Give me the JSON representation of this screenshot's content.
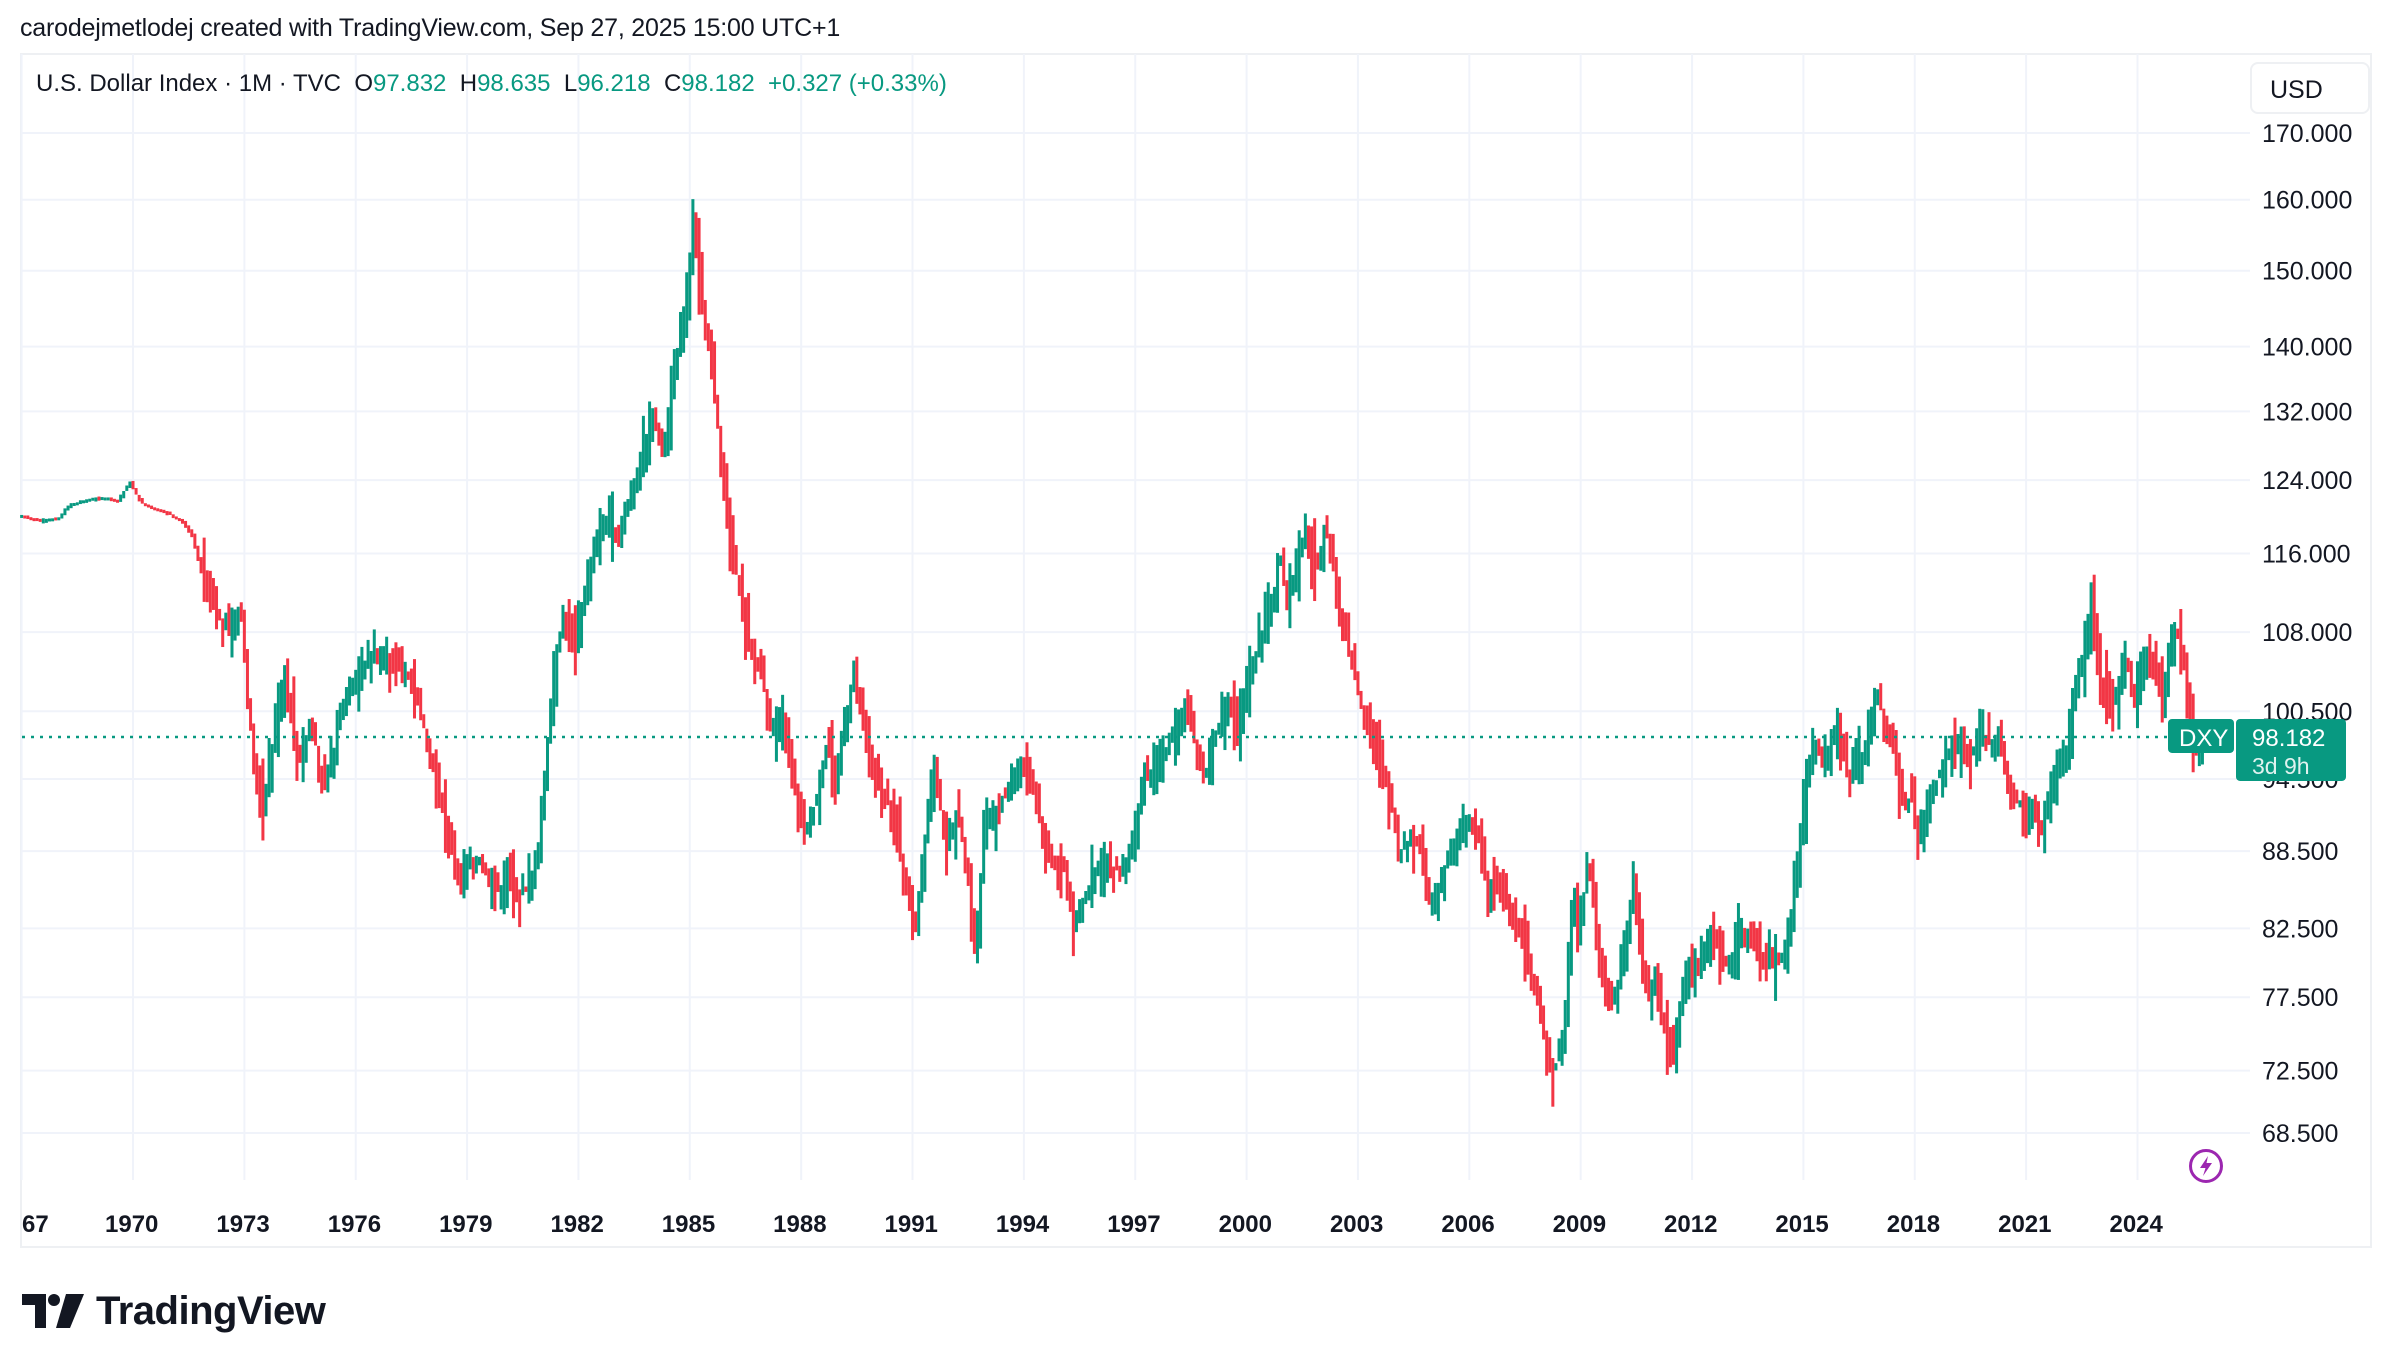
{
  "caption": "carodejmetlodej created with TradingView.com, Sep 27, 2025 15:00 UTC+1",
  "legend": {
    "title": "U.S. Dollar Index · 1M · TVC",
    "open_key": "O",
    "open": "97.832",
    "high_key": "H",
    "high": "98.635",
    "low_key": "L",
    "low": "96.218",
    "close_key": "C",
    "close": "98.182",
    "change": "+0.327 (+0.33%)"
  },
  "currency_button": "USD",
  "last_price": {
    "symbol": "DXY",
    "price": "98.182",
    "countdown": "3d 9h"
  },
  "brand": "TradingView",
  "icons": {
    "logo": "tradingview-logo-icon",
    "lightning": "lightning-icon"
  },
  "colors": {
    "up": "#089981",
    "down": "#f23645",
    "grid": "#f0f3fa",
    "accent_purple": "#9c27b0"
  },
  "chart_data": {
    "type": "bar",
    "style": "ohlc-candles",
    "interval": "1M",
    "scale": "log",
    "title": "U.S. Dollar Index · 1M · TVC",
    "xlabel": "",
    "ylabel": "USD",
    "ylim": [
      64,
      176
    ],
    "xlim": [
      1967.0,
      2027.3
    ],
    "y_ticks": [
      "170.000",
      "160.000",
      "150.000",
      "140.000",
      "132.000",
      "124.000",
      "116.000",
      "108.000",
      "100.500",
      "94.500",
      "88.500",
      "82.500",
      "77.500",
      "72.500",
      "68.500"
    ],
    "x_ticks": [
      "67",
      "1970",
      "1973",
      "1976",
      "1979",
      "1982",
      "1985",
      "1988",
      "1991",
      "1994",
      "1997",
      "2000",
      "2003",
      "2006",
      "2009",
      "2012",
      "2015",
      "2018",
      "2021",
      "2024"
    ],
    "last_value": 98.182,
    "grid": true,
    "key_points_note": "approximate monthly closes, [year_fraction, value]",
    "closes": [
      [
        1967.0,
        120.0
      ],
      [
        1967.5,
        119.5
      ],
      [
        1968.0,
        119.8
      ],
      [
        1968.3,
        121.3
      ],
      [
        1968.8,
        121.8
      ],
      [
        1969.3,
        122.0
      ],
      [
        1969.6,
        121.7
      ],
      [
        1969.9,
        123.8
      ],
      [
        1970.2,
        121.5
      ],
      [
        1970.6,
        120.8
      ],
      [
        1971.0,
        120.2
      ],
      [
        1971.3,
        119.5
      ],
      [
        1971.6,
        117.8
      ],
      [
        1971.9,
        113.0
      ],
      [
        1972.2,
        110.0
      ],
      [
        1972.6,
        108.5
      ],
      [
        1972.9,
        110.5
      ],
      [
        1973.1,
        101.0
      ],
      [
        1973.3,
        95.0
      ],
      [
        1973.5,
        92.0
      ],
      [
        1973.7,
        96.0
      ],
      [
        1973.9,
        101.0
      ],
      [
        1974.1,
        104.0
      ],
      [
        1974.3,
        99.0
      ],
      [
        1974.5,
        96.0
      ],
      [
        1974.8,
        100.0
      ],
      [
        1975.1,
        93.5
      ],
      [
        1975.3,
        95.0
      ],
      [
        1975.6,
        100.5
      ],
      [
        1975.9,
        103.0
      ],
      [
        1976.2,
        104.5
      ],
      [
        1976.5,
        106.0
      ],
      [
        1976.8,
        105.5
      ],
      [
        1977.2,
        104.5
      ],
      [
        1977.5,
        103.0
      ],
      [
        1977.8,
        100.0
      ],
      [
        1978.0,
        96.0
      ],
      [
        1978.2,
        94.0
      ],
      [
        1978.5,
        90.0
      ],
      [
        1978.8,
        86.0
      ],
      [
        1979.0,
        87.0
      ],
      [
        1979.3,
        88.0
      ],
      [
        1979.6,
        86.0
      ],
      [
        1979.9,
        85.5
      ],
      [
        1980.2,
        86.5
      ],
      [
        1980.4,
        85.0
      ],
      [
        1980.6,
        85.5
      ],
      [
        1980.9,
        88.0
      ],
      [
        1981.1,
        95.0
      ],
      [
        1981.3,
        104.0
      ],
      [
        1981.6,
        110.0
      ],
      [
        1981.9,
        106.0
      ],
      [
        1982.2,
        113.0
      ],
      [
        1982.5,
        118.0
      ],
      [
        1982.8,
        120.0
      ],
      [
        1983.1,
        118.0
      ],
      [
        1983.4,
        122.0
      ],
      [
        1983.7,
        127.0
      ],
      [
        1984.0,
        131.0
      ],
      [
        1984.3,
        128.0
      ],
      [
        1984.6,
        138.0
      ],
      [
        1984.9,
        145.0
      ],
      [
        1985.1,
        158.0
      ],
      [
        1985.2,
        150.0
      ],
      [
        1985.4,
        143.0
      ],
      [
        1985.6,
        136.0
      ],
      [
        1985.8,
        128.0
      ],
      [
        1986.0,
        120.0
      ],
      [
        1986.3,
        113.0
      ],
      [
        1986.6,
        106.0
      ],
      [
        1986.9,
        105.0
      ],
      [
        1987.2,
        98.5
      ],
      [
        1987.5,
        100.0
      ],
      [
        1987.9,
        92.0
      ],
      [
        1988.1,
        90.0
      ],
      [
        1988.4,
        92.5
      ],
      [
        1988.7,
        98.0
      ],
      [
        1988.9,
        94.0
      ],
      [
        1989.2,
        100.0
      ],
      [
        1989.4,
        104.0
      ],
      [
        1989.7,
        99.0
      ],
      [
        1990.0,
        94.0
      ],
      [
        1990.3,
        93.0
      ],
      [
        1990.6,
        89.5
      ],
      [
        1990.9,
        84.0
      ],
      [
        1991.1,
        82.5
      ],
      [
        1991.4,
        92.0
      ],
      [
        1991.6,
        96.0
      ],
      [
        1991.9,
        88.0
      ],
      [
        1992.2,
        92.0
      ],
      [
        1992.5,
        86.0
      ],
      [
        1992.7,
        80.5
      ],
      [
        1992.9,
        90.0
      ],
      [
        1993.2,
        92.0
      ],
      [
        1993.5,
        93.0
      ],
      [
        1993.9,
        96.0
      ],
      [
        1994.2,
        94.0
      ],
      [
        1994.5,
        90.0
      ],
      [
        1994.8,
        87.5
      ],
      [
        1995.1,
        87.0
      ],
      [
        1995.3,
        83.0
      ],
      [
        1995.6,
        84.5
      ],
      [
        1995.9,
        86.5
      ],
      [
        1996.2,
        87.5
      ],
      [
        1996.6,
        87.0
      ],
      [
        1996.9,
        89.0
      ],
      [
        1997.2,
        94.5
      ],
      [
        1997.5,
        95.5
      ],
      [
        1997.8,
        97.0
      ],
      [
        1998.1,
        99.5
      ],
      [
        1998.4,
        100.5
      ],
      [
        1998.7,
        96.0
      ],
      [
        1998.9,
        95.0
      ],
      [
        1999.2,
        99.0
      ],
      [
        1999.5,
        101.5
      ],
      [
        1999.8,
        99.0
      ],
      [
        2000.1,
        104.0
      ],
      [
        2000.4,
        108.0
      ],
      [
        2000.7,
        111.0
      ],
      [
        2000.9,
        116.0
      ],
      [
        2001.1,
        110.5
      ],
      [
        2001.4,
        116.5
      ],
      [
        2001.6,
        118.0
      ],
      [
        2001.9,
        114.0
      ],
      [
        2002.1,
        119.5
      ],
      [
        2002.3,
        116.0
      ],
      [
        2002.5,
        109.0
      ],
      [
        2002.8,
        106.0
      ],
      [
        2003.0,
        102.0
      ],
      [
        2003.3,
        99.0
      ],
      [
        2003.6,
        96.0
      ],
      [
        2003.9,
        92.0
      ],
      [
        2004.1,
        88.0
      ],
      [
        2004.4,
        89.5
      ],
      [
        2004.7,
        88.5
      ],
      [
        2004.9,
        84.5
      ],
      [
        2005.2,
        86.0
      ],
      [
        2005.5,
        89.0
      ],
      [
        2005.9,
        91.0
      ],
      [
        2006.2,
        90.0
      ],
      [
        2006.5,
        85.5
      ],
      [
        2006.8,
        86.0
      ],
      [
        2007.1,
        84.0
      ],
      [
        2007.4,
        82.0
      ],
      [
        2007.7,
        79.0
      ],
      [
        2007.9,
        76.0
      ],
      [
        2008.2,
        72.5
      ],
      [
        2008.4,
        73.0
      ],
      [
        2008.6,
        77.0
      ],
      [
        2008.8,
        86.0
      ],
      [
        2008.95,
        82.0
      ],
      [
        2009.2,
        88.0
      ],
      [
        2009.5,
        80.0
      ],
      [
        2009.8,
        76.5
      ],
      [
        2009.95,
        78.0
      ],
      [
        2010.2,
        81.0
      ],
      [
        2010.4,
        86.0
      ],
      [
        2010.6,
        81.5
      ],
      [
        2010.8,
        77.0
      ],
      [
        2011.0,
        79.0
      ],
      [
        2011.3,
        74.5
      ],
      [
        2011.5,
        74.0
      ],
      [
        2011.7,
        77.0
      ],
      [
        2011.9,
        80.0
      ],
      [
        2012.2,
        79.5
      ],
      [
        2012.5,
        82.5
      ],
      [
        2012.8,
        80.0
      ],
      [
        2013.0,
        79.5
      ],
      [
        2013.3,
        82.5
      ],
      [
        2013.6,
        81.5
      ],
      [
        2013.9,
        80.5
      ],
      [
        2014.2,
        80.0
      ],
      [
        2014.5,
        80.5
      ],
      [
        2014.7,
        84.5
      ],
      [
        2014.9,
        89.0
      ],
      [
        2015.1,
        95.0
      ],
      [
        2015.3,
        97.0
      ],
      [
        2015.6,
        96.0
      ],
      [
        2015.9,
        99.0
      ],
      [
        2016.2,
        94.5
      ],
      [
        2016.5,
        96.0
      ],
      [
        2016.8,
        98.5
      ],
      [
        2016.95,
        102.5
      ],
      [
        2017.2,
        100.0
      ],
      [
        2017.5,
        95.5
      ],
      [
        2017.7,
        92.5
      ],
      [
        2017.9,
        93.0
      ],
      [
        2018.1,
        89.0
      ],
      [
        2018.3,
        91.5
      ],
      [
        2018.6,
        94.5
      ],
      [
        2018.9,
        96.5
      ],
      [
        2019.2,
        97.0
      ],
      [
        2019.5,
        96.5
      ],
      [
        2019.8,
        98.5
      ],
      [
        2020.1,
        97.5
      ],
      [
        2020.25,
        99.0
      ],
      [
        2020.4,
        96.0
      ],
      [
        2020.6,
        93.0
      ],
      [
        2020.9,
        92.0
      ],
      [
        2021.0,
        90.0
      ],
      [
        2021.2,
        92.5
      ],
      [
        2021.4,
        90.0
      ],
      [
        2021.6,
        92.5
      ],
      [
        2021.9,
        95.5
      ],
      [
        2022.1,
        97.0
      ],
      [
        2022.3,
        103.0
      ],
      [
        2022.6,
        106.0
      ],
      [
        2022.75,
        112.0
      ],
      [
        2022.9,
        105.0
      ],
      [
        2023.1,
        102.0
      ],
      [
        2023.3,
        101.5
      ],
      [
        2023.5,
        102.0
      ],
      [
        2023.7,
        106.0
      ],
      [
        2023.9,
        101.0
      ],
      [
        2024.1,
        104.0
      ],
      [
        2024.3,
        106.0
      ],
      [
        2024.5,
        104.0
      ],
      [
        2024.7,
        101.0
      ],
      [
        2024.85,
        106.5
      ],
      [
        2025.0,
        108.5
      ],
      [
        2025.15,
        107.0
      ],
      [
        2025.3,
        104.0
      ],
      [
        2025.4,
        99.5
      ],
      [
        2025.5,
        98.0
      ],
      [
        2025.6,
        97.0
      ],
      [
        2025.7,
        97.8
      ],
      [
        2025.75,
        98.182
      ]
    ]
  }
}
